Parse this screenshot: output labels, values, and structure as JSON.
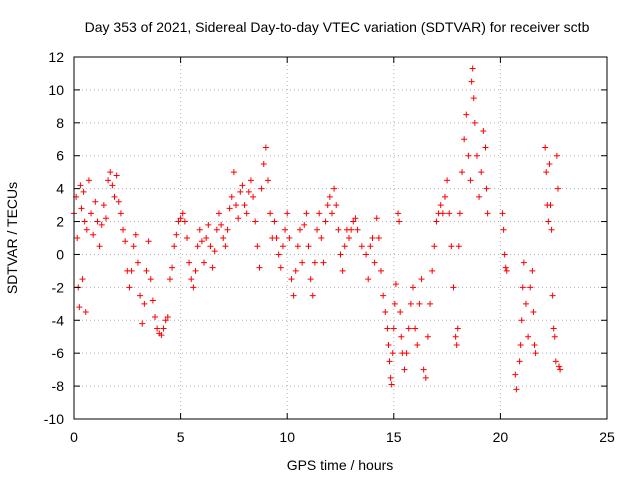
{
  "chart_data": {
    "type": "scatter",
    "title": "Day 353 of 2021, Sidereal Day-to-day VTEC variation (SDTVAR) for receiver sctb",
    "xlabel": "GPS time / hours",
    "ylabel": "SDTVAR / TECUs",
    "xlim": [
      0,
      25
    ],
    "ylim": [
      -10,
      12
    ],
    "x_ticks": [
      0,
      5,
      10,
      15,
      20,
      25
    ],
    "y_ticks": [
      -10,
      -8,
      -6,
      -4,
      -2,
      0,
      2,
      4,
      6,
      8,
      10,
      12
    ],
    "grid": true,
    "marker": "+",
    "colors": {
      "series": "#ff0000",
      "grid": "#b0b0b0",
      "axes": "#000000"
    },
    "series": [
      {
        "name": "SDTVAR",
        "points": [
          [
            0.0,
            2.5
          ],
          [
            0.1,
            3.5
          ],
          [
            0.15,
            1.0
          ],
          [
            0.2,
            -2.0
          ],
          [
            0.25,
            -3.2
          ],
          [
            0.3,
            4.2
          ],
          [
            0.35,
            2.8
          ],
          [
            0.4,
            -1.5
          ],
          [
            0.45,
            3.8
          ],
          [
            0.5,
            2.0
          ],
          [
            0.55,
            -3.5
          ],
          [
            0.6,
            1.5
          ],
          [
            0.7,
            4.5
          ],
          [
            0.8,
            2.5
          ],
          [
            0.9,
            1.2
          ],
          [
            1.0,
            3.2
          ],
          [
            1.1,
            2.0
          ],
          [
            1.2,
            0.5
          ],
          [
            1.3,
            1.8
          ],
          [
            1.4,
            3.0
          ],
          [
            1.5,
            2.2
          ],
          [
            1.6,
            4.5
          ],
          [
            1.7,
            5.0
          ],
          [
            1.8,
            4.2
          ],
          [
            1.9,
            3.5
          ],
          [
            2.0,
            4.8
          ],
          [
            2.1,
            3.2
          ],
          [
            2.2,
            2.5
          ],
          [
            2.3,
            1.5
          ],
          [
            2.4,
            0.8
          ],
          [
            2.5,
            -1.0
          ],
          [
            2.6,
            -2.0
          ],
          [
            2.7,
            -1.0
          ],
          [
            2.8,
            0.5
          ],
          [
            2.9,
            1.2
          ],
          [
            3.0,
            -0.5
          ],
          [
            3.1,
            -2.5
          ],
          [
            3.2,
            -4.2
          ],
          [
            3.3,
            -3.0
          ],
          [
            3.4,
            -1.0
          ],
          [
            3.5,
            0.8
          ],
          [
            3.6,
            -1.5
          ],
          [
            3.7,
            -2.8
          ],
          [
            3.8,
            -3.8
          ],
          [
            3.9,
            -4.5
          ],
          [
            4.0,
            -4.8
          ],
          [
            4.1,
            -4.9
          ],
          [
            4.2,
            -4.5
          ],
          [
            4.3,
            -4.0
          ],
          [
            4.4,
            -3.8
          ],
          [
            4.5,
            -1.5
          ],
          [
            4.6,
            -0.8
          ],
          [
            4.7,
            0.5
          ],
          [
            4.8,
            1.2
          ],
          [
            4.9,
            2.0
          ],
          [
            5.0,
            2.2
          ],
          [
            5.1,
            2.5
          ],
          [
            5.2,
            2.0
          ],
          [
            5.3,
            1.0
          ],
          [
            5.4,
            -0.5
          ],
          [
            5.5,
            -1.5
          ],
          [
            5.6,
            -2.0
          ],
          [
            5.7,
            -1.0
          ],
          [
            5.8,
            0.5
          ],
          [
            5.9,
            1.5
          ],
          [
            6.0,
            0.8
          ],
          [
            6.1,
            -0.5
          ],
          [
            6.2,
            1.0
          ],
          [
            6.3,
            1.8
          ],
          [
            6.4,
            0.5
          ],
          [
            6.5,
            -0.8
          ],
          [
            6.6,
            0.2
          ],
          [
            6.7,
            1.5
          ],
          [
            6.8,
            2.5
          ],
          [
            6.9,
            1.8
          ],
          [
            7.0,
            1.0
          ],
          [
            7.1,
            0.5
          ],
          [
            7.2,
            1.5
          ],
          [
            7.3,
            2.8
          ],
          [
            7.4,
            3.5
          ],
          [
            7.5,
            5.0
          ],
          [
            7.6,
            3.0
          ],
          [
            7.7,
            2.2
          ],
          [
            7.8,
            3.8
          ],
          [
            7.9,
            4.2
          ],
          [
            8.0,
            3.0
          ],
          [
            8.1,
            2.5
          ],
          [
            8.2,
            3.8
          ],
          [
            8.3,
            4.5
          ],
          [
            8.4,
            3.5
          ],
          [
            8.5,
            2.0
          ],
          [
            8.6,
            0.5
          ],
          [
            8.7,
            -0.8
          ],
          [
            8.8,
            4.0
          ],
          [
            8.9,
            5.5
          ],
          [
            9.0,
            6.5
          ],
          [
            9.1,
            4.5
          ],
          [
            9.2,
            2.5
          ],
          [
            9.3,
            1.0
          ],
          [
            9.4,
            2.0
          ],
          [
            9.5,
            1.0
          ],
          [
            9.6,
            0.0
          ],
          [
            9.7,
            -0.8
          ],
          [
            9.8,
            0.5
          ],
          [
            9.9,
            1.5
          ],
          [
            10.0,
            2.5
          ],
          [
            10.1,
            1.0
          ],
          [
            10.2,
            -1.5
          ],
          [
            10.3,
            -2.5
          ],
          [
            10.4,
            -1.0
          ],
          [
            10.5,
            0.5
          ],
          [
            10.6,
            1.5
          ],
          [
            10.7,
            -0.5
          ],
          [
            10.8,
            1.8
          ],
          [
            10.9,
            2.5
          ],
          [
            11.0,
            0.5
          ],
          [
            11.1,
            -1.5
          ],
          [
            11.2,
            -2.5
          ],
          [
            11.3,
            -0.5
          ],
          [
            11.4,
            1.5
          ],
          [
            11.5,
            2.5
          ],
          [
            11.6,
            1.0
          ],
          [
            11.7,
            -0.5
          ],
          [
            11.8,
            2.0
          ],
          [
            11.9,
            3.0
          ],
          [
            12.0,
            3.5
          ],
          [
            12.1,
            2.5
          ],
          [
            12.2,
            4.0
          ],
          [
            12.3,
            3.0
          ],
          [
            12.4,
            1.5
          ],
          [
            12.5,
            0.0
          ],
          [
            12.6,
            -1.0
          ],
          [
            12.7,
            0.5
          ],
          [
            12.8,
            1.5
          ],
          [
            12.9,
            1.0
          ],
          [
            13.0,
            1.5
          ],
          [
            13.1,
            2.0
          ],
          [
            13.2,
            2.2
          ],
          [
            13.3,
            1.5
          ],
          [
            13.5,
            0.5
          ],
          [
            13.7,
            0.0
          ],
          [
            13.8,
            -1.5
          ],
          [
            13.9,
            0.5
          ],
          [
            14.0,
            1.0
          ],
          [
            14.1,
            -0.5
          ],
          [
            14.2,
            2.2
          ],
          [
            14.3,
            1.0
          ],
          [
            14.4,
            -1.0
          ],
          [
            14.5,
            -2.5
          ],
          [
            14.6,
            -3.5
          ],
          [
            14.7,
            -4.5
          ],
          [
            14.75,
            -5.5
          ],
          [
            14.8,
            -6.5
          ],
          [
            14.85,
            -7.5
          ],
          [
            14.9,
            -7.9
          ],
          [
            14.95,
            -6.0
          ],
          [
            15.0,
            -4.5
          ],
          [
            15.05,
            -3.0
          ],
          [
            15.1,
            -1.8
          ],
          [
            15.2,
            2.5
          ],
          [
            15.25,
            2.0
          ],
          [
            15.3,
            -3.5
          ],
          [
            15.35,
            -5.0
          ],
          [
            15.4,
            -6.0
          ],
          [
            15.5,
            -7.0
          ],
          [
            15.6,
            -6.0
          ],
          [
            15.7,
            -4.5
          ],
          [
            15.8,
            -3.0
          ],
          [
            15.9,
            -2.0
          ],
          [
            16.0,
            -4.5
          ],
          [
            16.1,
            -5.5
          ],
          [
            16.2,
            -3.0
          ],
          [
            16.3,
            -1.5
          ],
          [
            16.4,
            -7.0
          ],
          [
            16.5,
            -7.5
          ],
          [
            16.6,
            -5.0
          ],
          [
            16.7,
            -3.0
          ],
          [
            16.8,
            -1.0
          ],
          [
            16.9,
            0.5
          ],
          [
            17.0,
            2.0
          ],
          [
            17.1,
            2.5
          ],
          [
            17.2,
            3.0
          ],
          [
            17.3,
            2.5
          ],
          [
            17.4,
            3.5
          ],
          [
            17.5,
            4.5
          ],
          [
            17.6,
            2.5
          ],
          [
            17.7,
            0.5
          ],
          [
            17.8,
            -2.0
          ],
          [
            17.9,
            -5.0
          ],
          [
            17.95,
            -5.5
          ],
          [
            18.0,
            -4.5
          ],
          [
            18.05,
            0.5
          ],
          [
            18.1,
            2.5
          ],
          [
            18.2,
            5.0
          ],
          [
            18.3,
            7.0
          ],
          [
            18.4,
            8.5
          ],
          [
            18.5,
            6.0
          ],
          [
            18.6,
            4.5
          ],
          [
            18.65,
            10.5
          ],
          [
            18.7,
            11.3
          ],
          [
            18.75,
            9.5
          ],
          [
            18.8,
            8.0
          ],
          [
            18.9,
            6.0
          ],
          [
            19.0,
            3.5
          ],
          [
            19.1,
            5.0
          ],
          [
            19.2,
            7.5
          ],
          [
            19.3,
            6.5
          ],
          [
            19.35,
            4.0
          ],
          [
            19.4,
            2.5
          ],
          [
            20.1,
            2.5
          ],
          [
            20.15,
            1.5
          ],
          [
            20.2,
            0.0
          ],
          [
            20.25,
            -0.8
          ],
          [
            20.3,
            -1.0
          ],
          [
            20.7,
            -7.3
          ],
          [
            20.75,
            -8.2
          ],
          [
            20.9,
            -6.5
          ],
          [
            20.95,
            -5.5
          ],
          [
            21.0,
            -4.0
          ],
          [
            21.05,
            -2.0
          ],
          [
            21.1,
            -0.5
          ],
          [
            21.2,
            -3.0
          ],
          [
            21.3,
            -5.0
          ],
          [
            21.4,
            -2.0
          ],
          [
            21.5,
            -1.0
          ],
          [
            21.55,
            -3.5
          ],
          [
            21.6,
            -5.5
          ],
          [
            21.65,
            -6.0
          ],
          [
            22.1,
            6.5
          ],
          [
            22.15,
            5.0
          ],
          [
            22.2,
            3.0
          ],
          [
            22.25,
            2.0
          ],
          [
            22.3,
            5.5
          ],
          [
            22.35,
            3.0
          ],
          [
            22.4,
            1.5
          ],
          [
            22.45,
            -2.5
          ],
          [
            22.5,
            -4.5
          ],
          [
            22.55,
            -5.0
          ],
          [
            22.6,
            -6.5
          ],
          [
            22.65,
            6.0
          ],
          [
            22.7,
            4.0
          ],
          [
            22.75,
            -6.8
          ],
          [
            22.8,
            -7.0
          ]
        ]
      }
    ]
  }
}
